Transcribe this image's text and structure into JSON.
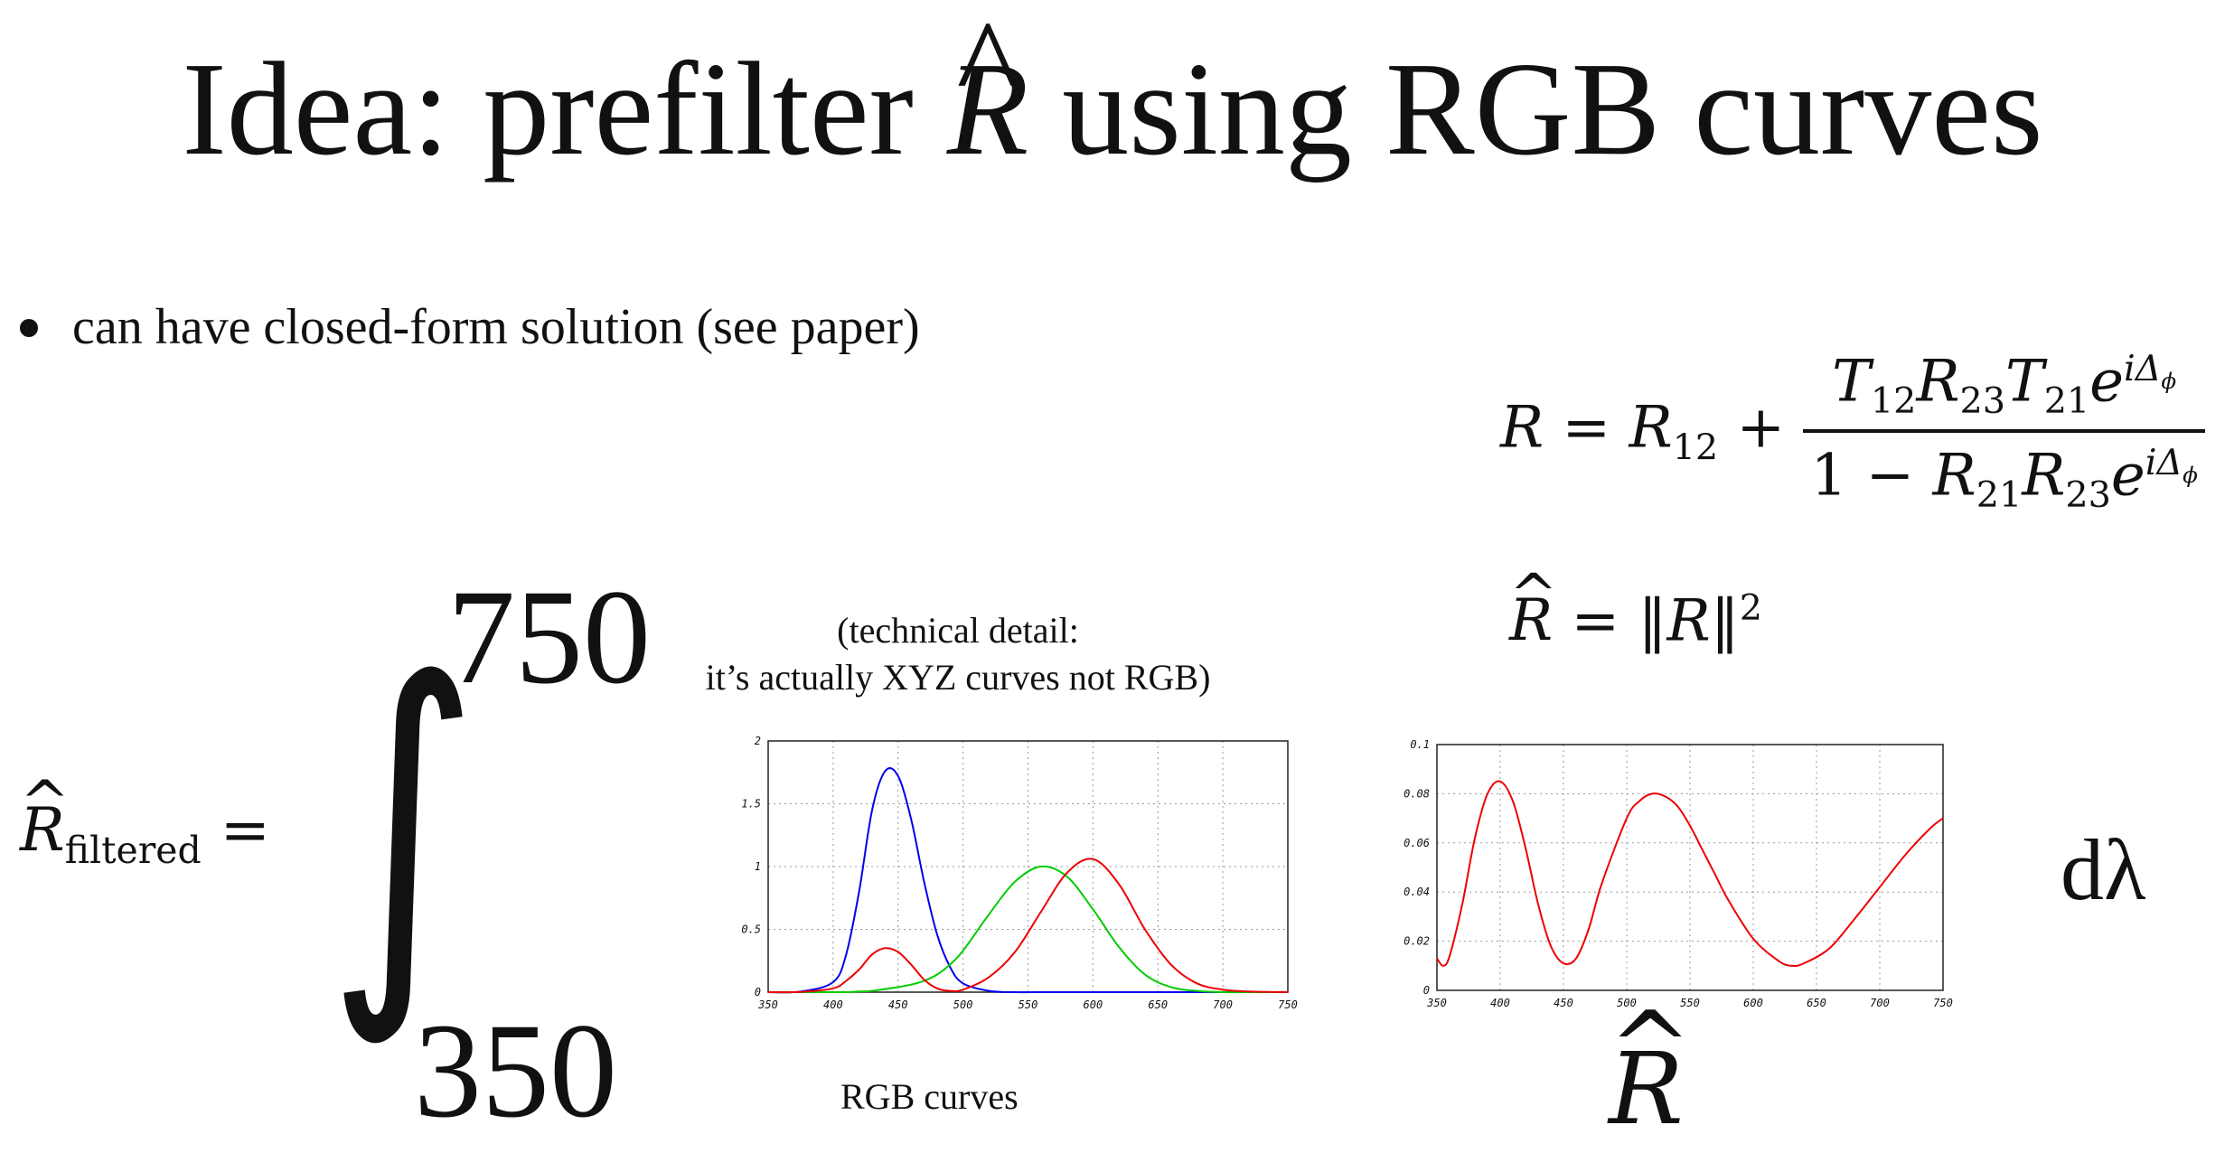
{
  "title": {
    "before": "Idea: prefilter ",
    "symbol": "R",
    "hat": "^",
    "after": " using RGB curves"
  },
  "bullet": "can have closed-form solution (see paper)",
  "equation_r": {
    "lhs": "R",
    "eq": "=",
    "r12_base": "R",
    "r12_sub": "12",
    "plus": "+",
    "num": {
      "t12": "T",
      "t12_sub": "12",
      "r23": "R",
      "r23_sub": "23",
      "t21": "T",
      "t21_sub": "21",
      "e": "e",
      "exp": "iΔ",
      "exp_sub": "ϕ"
    },
    "den": {
      "one": "1",
      "minus": "−",
      "r21": "R",
      "r21_sub": "21",
      "r23": "R",
      "r23_sub": "23",
      "e": "e",
      "exp": "iΔ",
      "exp_sub": "ϕ"
    }
  },
  "equation_rhat": {
    "lhs": "R",
    "hat": "^",
    "eq": "=",
    "norm": "‖R‖",
    "sup": "2"
  },
  "integral": {
    "lhs": "R",
    "hat": "^",
    "sub": "filtered",
    "eq": "=",
    "sign": "∫",
    "upper": "750",
    "lower": "350",
    "differential": "dλ"
  },
  "note": {
    "line1": "(technical detail:",
    "line2": "it’s actually XYZ curves not RGB)"
  },
  "label_rgb": "RGB curves",
  "label_rhat": {
    "symbol": "R",
    "hat": "^"
  },
  "chart_data": [
    {
      "type": "line",
      "title": "",
      "xlabel": "",
      "ylabel": "",
      "xlim": [
        350,
        750
      ],
      "ylim": [
        0,
        2
      ],
      "xticks": [
        "350",
        "400",
        "450",
        "500",
        "550",
        "600",
        "650",
        "700",
        "750"
      ],
      "yticks": [
        "0",
        "0.5",
        "1",
        "1.5",
        "2"
      ],
      "grid": true,
      "x": [
        350,
        375,
        400,
        410,
        420,
        430,
        440,
        450,
        460,
        470,
        480,
        490,
        500,
        520,
        540,
        560,
        580,
        600,
        620,
        640,
        660,
        680,
        700,
        720,
        750
      ],
      "series": [
        {
          "color": "#0000ee",
          "values": [
            0,
            0.005,
            0.08,
            0.3,
            0.8,
            1.45,
            1.76,
            1.72,
            1.38,
            0.88,
            0.46,
            0.2,
            0.07,
            0.01,
            0,
            0,
            0,
            0,
            0,
            0,
            0,
            0,
            0,
            0,
            0
          ]
        },
        {
          "color": "#00cc00",
          "values": [
            0,
            0,
            0,
            0,
            0.005,
            0.01,
            0.025,
            0.04,
            0.06,
            0.09,
            0.14,
            0.22,
            0.33,
            0.62,
            0.88,
            1.0,
            0.92,
            0.66,
            0.36,
            0.14,
            0.04,
            0.01,
            0,
            0,
            0
          ]
        },
        {
          "color": "#ee0000",
          "values": [
            0,
            0.002,
            0.03,
            0.09,
            0.18,
            0.3,
            0.35,
            0.32,
            0.22,
            0.1,
            0.03,
            0.01,
            0.02,
            0.12,
            0.32,
            0.64,
            0.95,
            1.06,
            0.86,
            0.5,
            0.22,
            0.07,
            0.02,
            0.005,
            0
          ]
        }
      ]
    },
    {
      "type": "line",
      "title": "",
      "xlabel": "",
      "ylabel": "",
      "xlim": [
        350,
        750
      ],
      "ylim": [
        0,
        0.1
      ],
      "xticks": [
        "350",
        "400",
        "450",
        "500",
        "550",
        "600",
        "650",
        "700",
        "750"
      ],
      "yticks": [
        "0",
        "0.02",
        "0.04",
        "0.06",
        "0.08",
        "0.1"
      ],
      "grid": true,
      "x": [
        350,
        355,
        360,
        370,
        380,
        390,
        400,
        410,
        420,
        430,
        440,
        450,
        460,
        470,
        480,
        500,
        510,
        520,
        530,
        540,
        550,
        560,
        570,
        580,
        600,
        620,
        630,
        640,
        660,
        680,
        700,
        720,
        740,
        750
      ],
      "series": [
        {
          "color": "#ee0000",
          "values": [
            0.013,
            0.01,
            0.014,
            0.035,
            0.062,
            0.08,
            0.085,
            0.077,
            0.058,
            0.035,
            0.018,
            0.011,
            0.013,
            0.025,
            0.043,
            0.07,
            0.077,
            0.08,
            0.079,
            0.075,
            0.067,
            0.057,
            0.047,
            0.037,
            0.021,
            0.012,
            0.01,
            0.011,
            0.017,
            0.029,
            0.042,
            0.055,
            0.066,
            0.07
          ]
        }
      ]
    }
  ]
}
